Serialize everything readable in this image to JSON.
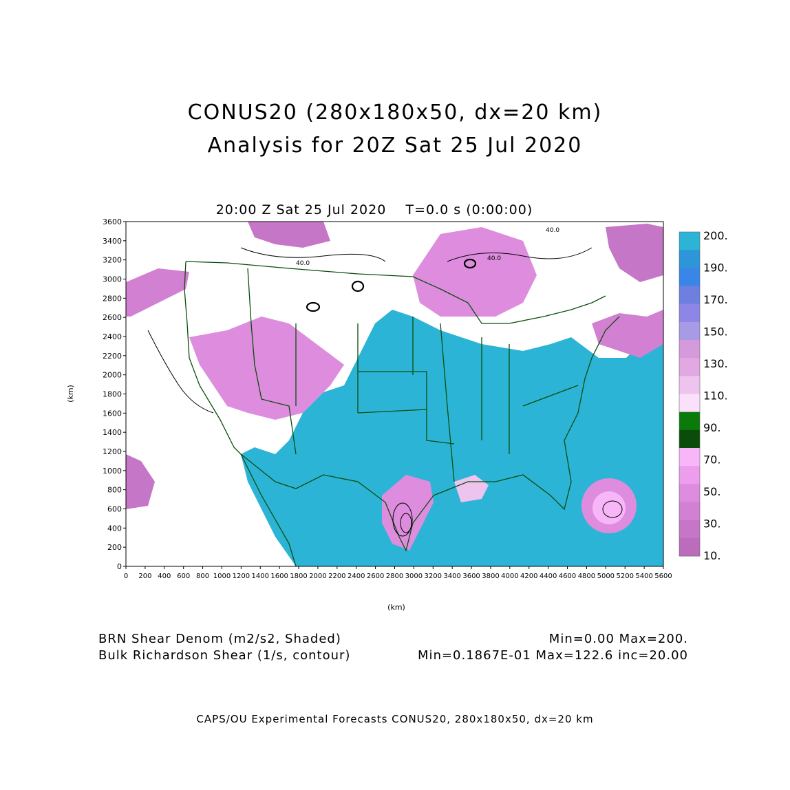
{
  "header": {
    "title_line1": "CONUS20 (280x180x50, dx=20 km)",
    "title_line2": "Analysis for 20Z Sat 25 Jul 2020",
    "valid_time": "20:00 Z Sat 25 Jul 2020",
    "time_step": "T=0.0 s (0:00:00)"
  },
  "axes": {
    "x_label": "(km)",
    "y_label": "(km)",
    "x_ticks": [
      "0",
      "200",
      "400",
      "600",
      "800",
      "1000",
      "1200",
      "1400",
      "1600",
      "1800",
      "2000",
      "2200",
      "2400",
      "2600",
      "2800",
      "3000",
      "3200",
      "3400",
      "3600",
      "3800",
      "4000",
      "4200",
      "4400",
      "4600",
      "4800",
      "5000",
      "5200",
      "5400",
      "5600"
    ],
    "y_ticks": [
      "0",
      "200",
      "400",
      "600",
      "800",
      "1000",
      "1200",
      "1400",
      "1600",
      "1800",
      "2000",
      "2200",
      "2400",
      "2600",
      "2800",
      "3000",
      "3200",
      "3400",
      "3600"
    ],
    "x_range": [
      0,
      5600
    ],
    "y_range": [
      0,
      3600
    ]
  },
  "contour_labels": [
    "40.0",
    "40.0",
    "40.0"
  ],
  "colorbar": {
    "labels": [
      "200.",
      "190.",
      "170.",
      "150.",
      "130.",
      "110.",
      "90.",
      "70.",
      "50.",
      "30.",
      "10."
    ],
    "colors": [
      "#2cb4d6",
      "#2c96d8",
      "#3a86e8",
      "#6e7fe0",
      "#8e86e6",
      "#a99ae6",
      "#d59adc",
      "#e2a8e2",
      "#eec4ee",
      "#fbe0fb",
      "#0b7a0b",
      "#0a4d0a",
      "#f7b6f7",
      "#ec9eec",
      "#de8cde",
      "#d280d2",
      "#c676c6",
      "#bb6cbb"
    ]
  },
  "legend": {
    "shaded_field": "BRN Shear Denom (m2/s2, Shaded)",
    "shaded_stats": "Min=0.00 Max=200.",
    "contour_field": "Bulk Richardson Shear (1/s, contour)",
    "contour_stats": "Min=0.1867E-01 Max=122.6 inc=20.00"
  },
  "footer": {
    "credits": "CAPS/OU Experimental Forecasts  CONUS20, 280x180x50, dx=20 km"
  }
}
